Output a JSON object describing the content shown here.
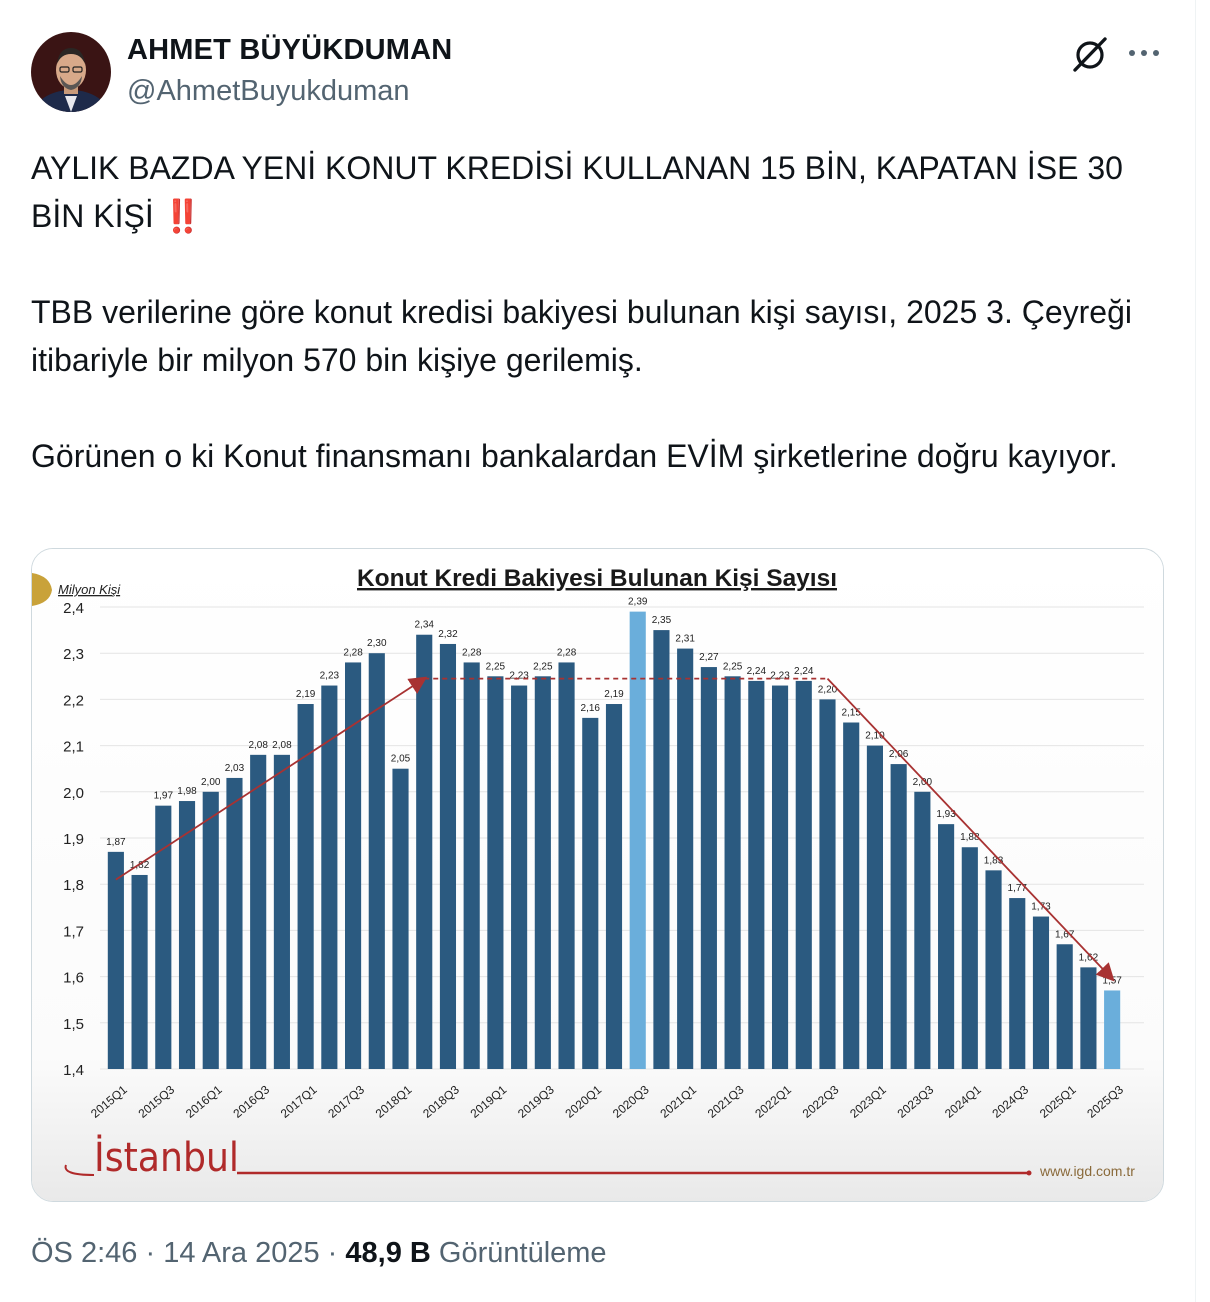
{
  "author": {
    "name": "AHMET BÜYÜKDUMAN",
    "handle": "@AhmetBuyukduman"
  },
  "tweet": {
    "line1": "AYLIK BAZDA YENİ KONUT KREDİSİ KULLANAN 15 BİN, KAPATAN İSE 30 BİN KİŞİ",
    "emoji": "‼️",
    "para2": "TBB verilerine göre konut kredisi bakiyesi bulunan kişi sayısı, 2025 3. Çeyreği itibariyle bir milyon 570 bin kişiye gerilemiş.",
    "para3": "Görünen o ki Konut finansmanı bankalardan EVİM şirketlerine doğru kayıyor."
  },
  "icons": {
    "grok": "grok-icon",
    "more": "more-icon"
  },
  "chart_data": {
    "type": "bar",
    "title": "Konut Kredi Bakiyesi Bulunan Kişi Sayısı",
    "ylabel": "Milyon Kişi",
    "ylim": [
      1.4,
      2.4
    ],
    "yticks": [
      "1,4",
      "1,5",
      "1,6",
      "1,7",
      "1,8",
      "1,9",
      "2,0",
      "2,1",
      "2,2",
      "2,3",
      "2,4"
    ],
    "x_tick_labels": [
      "2015Q1",
      "2015Q3",
      "2016Q1",
      "2016Q3",
      "2017Q1",
      "2017Q3",
      "2018Q1",
      "2018Q3",
      "2019Q1",
      "2019Q3",
      "2020Q1",
      "2020Q3",
      "2021Q1",
      "2021Q3",
      "2022Q1",
      "2022Q3",
      "2023Q1",
      "2023Q3",
      "2024Q1",
      "2024Q3",
      "2025Q1",
      "2025Q3"
    ],
    "values": [
      1.87,
      1.82,
      1.97,
      1.98,
      2.0,
      2.03,
      2.08,
      2.08,
      2.19,
      2.23,
      2.28,
      2.3,
      2.05,
      2.34,
      2.32,
      2.28,
      2.25,
      2.23,
      2.25,
      2.28,
      2.16,
      2.19,
      2.39,
      2.35,
      2.31,
      2.27,
      2.25,
      2.24,
      2.23,
      2.24,
      2.2,
      2.15,
      2.1,
      2.06,
      2.0,
      1.93,
      1.88,
      1.83,
      1.77,
      1.73,
      1.67,
      1.62,
      1.57
    ],
    "data_labels": [
      "1,87",
      "1,82",
      "1,97",
      "1,98",
      "2,00",
      "2,03",
      "2,08",
      "2,08",
      "2,19",
      "2,23",
      "2,28",
      "2,30",
      "2,05",
      "2,34",
      "2,32",
      "2,28",
      "2,25",
      "2,23",
      "2,25",
      "2,28",
      "2,16",
      "2,19",
      "2,39",
      "2,35",
      "2,31",
      "2,27",
      "2,25",
      "2,24",
      "2,23",
      "2,24",
      "2,20",
      "2,15",
      "2,10",
      "2,06",
      "2,00",
      "1,93",
      "1,88",
      "1,83",
      "1,77",
      "1,73",
      "1,67",
      "1,62",
      "1,57"
    ],
    "highlight_indices": [
      22,
      42
    ],
    "colors": {
      "bar": "#2b5a80",
      "highlight": "#6aaedb",
      "trend": "#a83232"
    },
    "trend_lines": [
      {
        "from": [
          0,
          1.81
        ],
        "to": [
          13,
          2.245
        ],
        "style": "solid"
      },
      {
        "from": [
          13,
          2.245
        ],
        "to": [
          30,
          2.245
        ],
        "style": "dashed"
      },
      {
        "from": [
          30,
          2.245
        ],
        "to": [
          42,
          1.595
        ],
        "style": "solid"
      }
    ],
    "grid": true,
    "legend": "none",
    "footer_logo": "İstanbul",
    "watermark": "www.igd.com.tr"
  },
  "footer": {
    "time": "ÖS 2:46",
    "date": "14 Ara 2025",
    "views_count": "48,9 B",
    "views_label": "Görüntüleme"
  }
}
